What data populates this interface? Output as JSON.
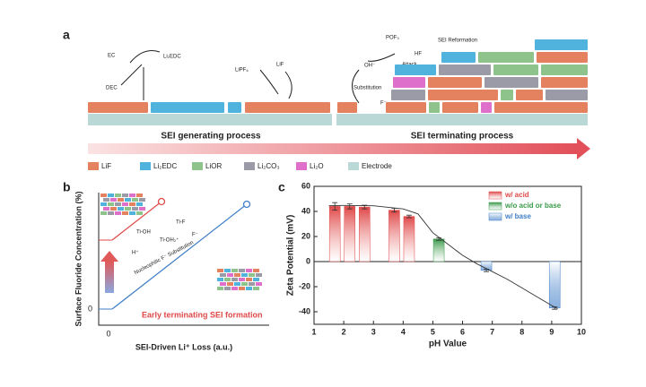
{
  "panel_a": {
    "label": "a",
    "molecules": [
      "EC",
      "Li₂EDC",
      "DEC",
      "LiPF₆",
      "LiF",
      "POF₃",
      "HF",
      "OH⁻",
      "F⁻"
    ],
    "annotations": [
      "SEI Reformation",
      "Attack",
      "Substitution"
    ],
    "processes": [
      "SEI generating process",
      "SEI terminating process"
    ],
    "legend": [
      {
        "name": "LiF",
        "color": "#e4825f"
      },
      {
        "name": "Li₂EDC",
        "color": "#4fb3dd"
      },
      {
        "name": "LiOR",
        "color": "#8fc38c"
      },
      {
        "name": "Li₂CO₃",
        "color": "#9b9ba8"
      },
      {
        "name": "Li₂O",
        "color": "#de6fca"
      },
      {
        "name": "Electrode",
        "color": "#b9d8d6"
      }
    ]
  },
  "panel_b": {
    "label": "b",
    "y_label": "Surface Fluoride Concentration (%)",
    "x_label": "SEI-Driven Li⁺ Loss (a.u.)",
    "x_tick": "0",
    "y_tick": "0",
    "species": [
      "Ti-OH",
      "Ti-OH₂⁺",
      "Ti-F",
      "H⁺",
      "F⁻"
    ],
    "mechanism": "Nucleophilic F⁻ Substitution",
    "caption": "Early terminating SEI formation"
  },
  "chart_data": {
    "type": "bar",
    "label": "c",
    "x_label": "pH Value",
    "y_label": "Zeta Potential (mV)",
    "xlim": [
      1,
      10
    ],
    "xticks": [
      1,
      2,
      3,
      4,
      5,
      6,
      7,
      8,
      9,
      10
    ],
    "ylim": [
      -50,
      60
    ],
    "yticks": [
      -40,
      -20,
      0,
      20,
      40,
      60
    ],
    "series": [
      {
        "name": "w/ acid",
        "color": "#e04848",
        "x": [
          1.7,
          2.2,
          2.7,
          3.7,
          4.2
        ],
        "values": [
          44,
          44,
          43.5,
          41,
          36
        ],
        "errors": [
          3,
          2,
          1.5,
          1.5,
          1
        ]
      },
      {
        "name": "w/o acid or base",
        "color": "#3a9a4a",
        "x": [
          5.2
        ],
        "values": [
          18
        ],
        "errors": [
          1
        ]
      },
      {
        "name": "w/ base",
        "color": "#3f7ec8",
        "x": [
          6.8,
          9.1
        ],
        "values": [
          -7,
          -37
        ],
        "errors": [
          1,
          1
        ]
      }
    ],
    "fit": {
      "x": [
        1.5,
        2,
        3,
        4,
        4.5,
        5,
        5.5,
        6,
        6.5,
        7,
        7.5,
        8,
        8.5,
        9,
        9.2
      ],
      "y": [
        44.5,
        44.8,
        44.5,
        42,
        38,
        23,
        14,
        5,
        -2,
        -8,
        -14,
        -21,
        -28,
        -35,
        -37.5
      ]
    }
  }
}
